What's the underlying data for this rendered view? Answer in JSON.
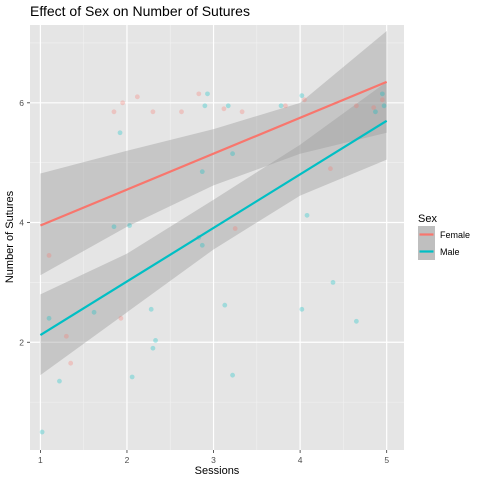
{
  "chart_data": {
    "type": "scatter",
    "title": "Effect of Sex on Number of Sutures",
    "xlabel": "Sessions",
    "ylabel": "Number of Sutures",
    "xlim": [
      0.88,
      5.2
    ],
    "ylim": [
      0.2,
      7.3
    ],
    "x_ticks": [
      1,
      2,
      3,
      4,
      5
    ],
    "y_ticks": [
      2,
      4,
      6
    ],
    "grid": true,
    "legend": {
      "title": "Sex",
      "position": "right",
      "entries": [
        "Female",
        "Male"
      ]
    },
    "series": [
      {
        "name": "Female",
        "color": "#F8766D",
        "points": [
          [
            1.1,
            3.45
          ],
          [
            1.3,
            2.1
          ],
          [
            1.35,
            1.65
          ],
          [
            1.85,
            5.85
          ],
          [
            1.93,
            2.4
          ],
          [
            1.95,
            6.0
          ],
          [
            2.12,
            6.1
          ],
          [
            2.3,
            5.85
          ],
          [
            2.63,
            5.85
          ],
          [
            2.83,
            6.15
          ],
          [
            3.12,
            5.9
          ],
          [
            3.25,
            3.9
          ],
          [
            3.33,
            5.85
          ],
          [
            3.83,
            5.95
          ],
          [
            4.05,
            6.05
          ],
          [
            4.35,
            4.9
          ],
          [
            4.65,
            5.95
          ],
          [
            4.85,
            5.92
          ],
          [
            4.95,
            6.05
          ]
        ],
        "fit": {
          "y_at_xmin": 3.95,
          "y_at_xmax": 6.35
        },
        "ci": {
          "x": [
            1,
            2,
            3,
            4,
            5
          ],
          "lower": [
            3.12,
            3.93,
            4.62,
            5.15,
            5.5
          ],
          "upper": [
            4.82,
            5.2,
            5.56,
            6.0,
            7.2
          ]
        }
      },
      {
        "name": "Male",
        "color": "#00BFC4",
        "points": [
          [
            1.02,
            0.5
          ],
          [
            1.1,
            2.4
          ],
          [
            1.22,
            1.35
          ],
          [
            1.62,
            2.5
          ],
          [
            1.85,
            3.93
          ],
          [
            1.92,
            5.5
          ],
          [
            2.03,
            3.95
          ],
          [
            2.06,
            1.42
          ],
          [
            2.28,
            2.55
          ],
          [
            2.3,
            1.9
          ],
          [
            2.33,
            2.03
          ],
          [
            2.83,
            3.75
          ],
          [
            2.87,
            3.62
          ],
          [
            2.87,
            4.85
          ],
          [
            2.9,
            5.95
          ],
          [
            2.93,
            6.15
          ],
          [
            3.13,
            2.62
          ],
          [
            3.17,
            5.95
          ],
          [
            3.22,
            1.45
          ],
          [
            3.22,
            5.15
          ],
          [
            3.78,
            5.95
          ],
          [
            4.02,
            2.55
          ],
          [
            4.02,
            6.12
          ],
          [
            4.08,
            4.12
          ],
          [
            4.38,
            3.0
          ],
          [
            4.65,
            2.35
          ],
          [
            4.87,
            5.85
          ],
          [
            4.95,
            6.15
          ],
          [
            4.97,
            5.95
          ]
        ],
        "fit": {
          "y_at_xmin": 2.12,
          "y_at_xmax": 5.7
        },
        "ci": {
          "x": [
            1,
            2,
            3,
            4,
            5
          ],
          "lower": [
            1.45,
            2.5,
            3.55,
            4.45,
            5.05
          ],
          "upper": [
            2.8,
            3.48,
            4.38,
            5.3,
            6.35
          ]
        }
      }
    ]
  }
}
